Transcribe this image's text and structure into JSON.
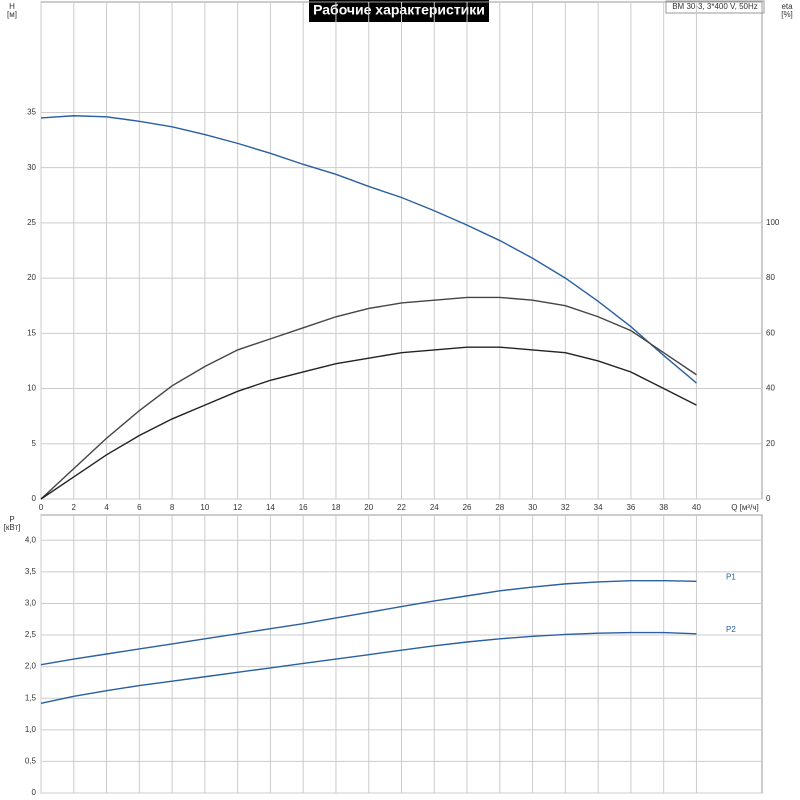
{
  "title": "Рабочие характеристики",
  "info": "BM 30-3, 3*400 V, 50Hz",
  "chart_data": [
    {
      "type": "line",
      "ylabel": "H",
      "yunit": "[м]",
      "y2label": "eta",
      "y2unit": "[%]",
      "xlabel": "Q [м³/ч]",
      "x": [
        0,
        2,
        4,
        6,
        8,
        10,
        12,
        14,
        16,
        18,
        20,
        22,
        24,
        26,
        28,
        30,
        32,
        34,
        36,
        38,
        40
      ],
      "xlim": [
        0,
        44
      ],
      "xticks": [
        0,
        2,
        4,
        6,
        8,
        10,
        12,
        14,
        16,
        18,
        20,
        22,
        24,
        26,
        28,
        30,
        32,
        34,
        36,
        38,
        40
      ],
      "ylim": [
        0,
        45
      ],
      "yticks": [
        0,
        5,
        10,
        15,
        20,
        25,
        30,
        35
      ],
      "y2lim": [
        0,
        180
      ],
      "y2ticks": [
        0,
        20,
        40,
        60,
        80,
        100
      ],
      "grid": true,
      "series": [
        {
          "color": "#2a5fa0",
          "values": [
            34.5,
            34.7,
            34.6,
            34.2,
            33.7,
            33.0,
            32.2,
            31.3,
            30.3,
            29.4,
            28.3,
            27.3,
            26.1,
            24.8,
            23.4,
            21.8,
            20.0,
            17.9,
            15.6,
            13.0,
            10.5
          ]
        },
        {
          "color": "#444444",
          "axis": "y2",
          "values": [
            0,
            11,
            22,
            32,
            41,
            48,
            54,
            58,
            62,
            66,
            69,
            71,
            72,
            73,
            73,
            72,
            70,
            66,
            61,
            53,
            45
          ]
        },
        {
          "color": "#222222",
          "axis": "y2",
          "values": [
            0,
            8,
            16,
            23,
            29,
            34,
            39,
            43,
            46,
            49,
            51,
            53,
            54,
            55,
            55,
            54,
            53,
            50,
            46,
            40,
            34
          ]
        }
      ]
    },
    {
      "type": "line",
      "ylabel": "P",
      "yunit": "[кВт]",
      "x": [
        0,
        2,
        4,
        6,
        8,
        10,
        12,
        14,
        16,
        18,
        20,
        22,
        24,
        26,
        28,
        30,
        32,
        34,
        36,
        38,
        40
      ],
      "xlim": [
        0,
        44
      ],
      "xticks": [
        0,
        2,
        4,
        6,
        8,
        10,
        12,
        14,
        16,
        18,
        20,
        22,
        24,
        26,
        28,
        30,
        32,
        34,
        36,
        38,
        40
      ],
      "ylim": [
        0,
        4.4
      ],
      "yticks": [
        0,
        {
          "value": 0.5,
          "label": "0,5"
        },
        {
          "value": 1,
          "label": "1,0"
        },
        {
          "value": 1.5,
          "label": "1,5"
        },
        {
          "value": 2,
          "label": "2,0"
        },
        {
          "value": 2.5,
          "label": "2,5"
        },
        {
          "value": 3,
          "label": "3,0"
        },
        {
          "value": 3.5,
          "label": "3,5"
        },
        {
          "value": 4,
          "label": "4,0"
        }
      ],
      "grid": true,
      "series": [
        {
          "name": "P1",
          "color": "#2a5fa0",
          "values": [
            2.03,
            2.12,
            2.2,
            2.28,
            2.36,
            2.44,
            2.52,
            2.6,
            2.68,
            2.77,
            2.86,
            2.95,
            3.04,
            3.12,
            3.2,
            3.26,
            3.31,
            3.34,
            3.36,
            3.36,
            3.35
          ]
        },
        {
          "name": "P2",
          "color": "#2a5fa0",
          "values": [
            1.42,
            1.53,
            1.62,
            1.7,
            1.77,
            1.84,
            1.91,
            1.98,
            2.05,
            2.12,
            2.19,
            2.26,
            2.33,
            2.39,
            2.44,
            2.48,
            2.51,
            2.53,
            2.54,
            2.54,
            2.52
          ]
        }
      ]
    }
  ]
}
